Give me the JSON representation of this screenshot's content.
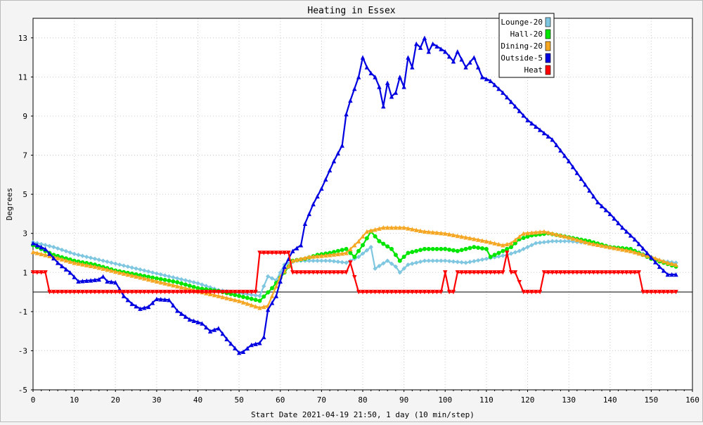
{
  "chart_data": {
    "type": "line",
    "title": "Heating in Essex",
    "xlabel": "Start Date 2021-04-19 21:50, 1 day (10 min/step)",
    "ylabel": "Degrees",
    "xlim": [
      0,
      160
    ],
    "ylim": [
      -5,
      14
    ],
    "x_ticks": [
      "0",
      "10",
      "20",
      "30",
      "40",
      "50",
      "60",
      "70",
      "80",
      "90",
      "100",
      "110",
      "120",
      "130",
      "140",
      "150",
      "160"
    ],
    "y_ticks": [
      "-5",
      "-3",
      "-1",
      "1",
      "3",
      "5",
      "7",
      "9",
      "11",
      "13"
    ],
    "grid": true,
    "zero_line": true,
    "legend_position": "top-right",
    "colors": {
      "background": "#ffffff",
      "page": "#f4f4f4",
      "grid": "#cccccc",
      "axis": "#000000"
    },
    "series": [
      {
        "name": "Lounge-20",
        "color": "#7fc7e0",
        "marker": "diamond",
        "points": [
          [
            0,
            2.55
          ],
          [
            5,
            2.3
          ],
          [
            10,
            1.95
          ],
          [
            15,
            1.7
          ],
          [
            20,
            1.45
          ],
          [
            25,
            1.2
          ],
          [
            30,
            0.95
          ],
          [
            35,
            0.7
          ],
          [
            40,
            0.45
          ],
          [
            45,
            0.1
          ],
          [
            50,
            -0.05
          ],
          [
            55,
            -0.2
          ],
          [
            57,
            0.8
          ],
          [
            59,
            0.6
          ],
          [
            61,
            1.4
          ],
          [
            64,
            1.6
          ],
          [
            68,
            1.6
          ],
          [
            72,
            1.6
          ],
          [
            76,
            1.5
          ],
          [
            79,
            1.8
          ],
          [
            82,
            2.3
          ],
          [
            83,
            1.2
          ],
          [
            86,
            1.6
          ],
          [
            88,
            1.3
          ],
          [
            89,
            1.0
          ],
          [
            91,
            1.4
          ],
          [
            95,
            1.6
          ],
          [
            100,
            1.6
          ],
          [
            105,
            1.5
          ],
          [
            110,
            1.7
          ],
          [
            115,
            1.9
          ],
          [
            118,
            2.1
          ],
          [
            122,
            2.5
          ],
          [
            126,
            2.6
          ],
          [
            130,
            2.6
          ],
          [
            135,
            2.5
          ],
          [
            140,
            2.3
          ],
          [
            145,
            2.2
          ],
          [
            150,
            1.8
          ],
          [
            152,
            1.6
          ],
          [
            156,
            1.5
          ]
        ]
      },
      {
        "name": "Hall-20",
        "color": "#00e600",
        "marker": "circle",
        "points": [
          [
            0,
            2.4
          ],
          [
            5,
            1.9
          ],
          [
            10,
            1.6
          ],
          [
            15,
            1.4
          ],
          [
            20,
            1.1
          ],
          [
            25,
            0.9
          ],
          [
            30,
            0.7
          ],
          [
            35,
            0.5
          ],
          [
            40,
            0.2
          ],
          [
            45,
            0.05
          ],
          [
            50,
            -0.2
          ],
          [
            55,
            -0.45
          ],
          [
            58,
            0.2
          ],
          [
            61,
            1.0
          ],
          [
            63,
            1.6
          ],
          [
            66,
            1.7
          ],
          [
            69,
            1.9
          ],
          [
            72,
            2.0
          ],
          [
            76,
            2.2
          ],
          [
            78,
            1.8
          ],
          [
            80,
            2.4
          ],
          [
            82,
            3.1
          ],
          [
            84,
            2.6
          ],
          [
            87,
            2.2
          ],
          [
            89,
            1.6
          ],
          [
            91,
            2.0
          ],
          [
            95,
            2.2
          ],
          [
            100,
            2.2
          ],
          [
            103,
            2.1
          ],
          [
            107,
            2.3
          ],
          [
            110,
            2.2
          ],
          [
            111,
            1.8
          ],
          [
            114,
            2.1
          ],
          [
            116,
            2.3
          ],
          [
            118,
            2.7
          ],
          [
            121,
            2.9
          ],
          [
            125,
            3.0
          ],
          [
            130,
            2.8
          ],
          [
            135,
            2.6
          ],
          [
            140,
            2.3
          ],
          [
            145,
            2.2
          ],
          [
            150,
            1.7
          ],
          [
            153,
            1.5
          ],
          [
            156,
            1.3
          ]
        ]
      },
      {
        "name": "Dining-20",
        "color": "#f5a623",
        "marker": "triangle",
        "points": [
          [
            0,
            2.05
          ],
          [
            5,
            1.8
          ],
          [
            10,
            1.5
          ],
          [
            15,
            1.3
          ],
          [
            20,
            1.05
          ],
          [
            25,
            0.8
          ],
          [
            30,
            0.55
          ],
          [
            35,
            0.3
          ],
          [
            40,
            0.05
          ],
          [
            45,
            -0.2
          ],
          [
            50,
            -0.45
          ],
          [
            55,
            -0.8
          ],
          [
            57,
            -0.7
          ],
          [
            60,
            0.8
          ],
          [
            63,
            1.6
          ],
          [
            67,
            1.8
          ],
          [
            72,
            1.9
          ],
          [
            76,
            2.0
          ],
          [
            79,
            2.6
          ],
          [
            81,
            3.1
          ],
          [
            85,
            3.3
          ],
          [
            90,
            3.3
          ],
          [
            95,
            3.1
          ],
          [
            100,
            3.0
          ],
          [
            105,
            2.8
          ],
          [
            110,
            2.6
          ],
          [
            114,
            2.4
          ],
          [
            116,
            2.5
          ],
          [
            119,
            3.0
          ],
          [
            124,
            3.1
          ],
          [
            130,
            2.8
          ],
          [
            135,
            2.5
          ],
          [
            140,
            2.3
          ],
          [
            145,
            2.1
          ],
          [
            150,
            1.8
          ],
          [
            154,
            1.5
          ],
          [
            156,
            1.4
          ]
        ]
      },
      {
        "name": "Outside-5",
        "color": "#0000e0",
        "marker": "triangle",
        "points": [
          [
            0,
            2.5
          ],
          [
            3,
            2.2
          ],
          [
            6,
            1.5
          ],
          [
            9,
            1.0
          ],
          [
            11,
            0.55
          ],
          [
            14,
            0.6
          ],
          [
            16,
            0.65
          ],
          [
            17,
            0.8
          ],
          [
            18,
            0.55
          ],
          [
            20,
            0.5
          ],
          [
            22,
            -0.2
          ],
          [
            24,
            -0.6
          ],
          [
            26,
            -0.85
          ],
          [
            28,
            -0.75
          ],
          [
            30,
            -0.35
          ],
          [
            33,
            -0.4
          ],
          [
            35,
            -0.95
          ],
          [
            38,
            -1.4
          ],
          [
            41,
            -1.6
          ],
          [
            43,
            -2.0
          ],
          [
            45,
            -1.85
          ],
          [
            47,
            -2.4
          ],
          [
            50,
            -3.1
          ],
          [
            51,
            -3.05
          ],
          [
            53,
            -2.7
          ],
          [
            55,
            -2.6
          ],
          [
            56,
            -2.3
          ],
          [
            57,
            -0.9
          ],
          [
            59,
            -0.2
          ],
          [
            61,
            1.3
          ],
          [
            63,
            2.1
          ],
          [
            65,
            2.4
          ],
          [
            66,
            3.5
          ],
          [
            68,
            4.5
          ],
          [
            70,
            5.3
          ],
          [
            73,
            6.7
          ],
          [
            75,
            7.5
          ],
          [
            76,
            9.1
          ],
          [
            77,
            9.8
          ],
          [
            79,
            11.0
          ],
          [
            80,
            12.0
          ],
          [
            81,
            11.5
          ],
          [
            82,
            11.2
          ],
          [
            83,
            11.0
          ],
          [
            84,
            10.5
          ],
          [
            85,
            9.5
          ],
          [
            86,
            10.7
          ],
          [
            87,
            10.0
          ],
          [
            88,
            10.2
          ],
          [
            89,
            11.0
          ],
          [
            90,
            10.5
          ],
          [
            91,
            12.0
          ],
          [
            92,
            11.5
          ],
          [
            93,
            12.7
          ],
          [
            94,
            12.5
          ],
          [
            95,
            13.0
          ],
          [
            96,
            12.3
          ],
          [
            97,
            12.7
          ],
          [
            100,
            12.3
          ],
          [
            102,
            11.8
          ],
          [
            103,
            12.3
          ],
          [
            105,
            11.5
          ],
          [
            107,
            12.0
          ],
          [
            109,
            11.0
          ],
          [
            111,
            10.8
          ],
          [
            114,
            10.2
          ],
          [
            117,
            9.5
          ],
          [
            120,
            8.8
          ],
          [
            123,
            8.3
          ],
          [
            126,
            7.8
          ],
          [
            130,
            6.7
          ],
          [
            134,
            5.5
          ],
          [
            137,
            4.6
          ],
          [
            140,
            4.0
          ],
          [
            143,
            3.3
          ],
          [
            146,
            2.7
          ],
          [
            149,
            2.0
          ],
          [
            152,
            1.3
          ],
          [
            154,
            0.9
          ],
          [
            156,
            0.9
          ]
        ]
      },
      {
        "name": "Heat",
        "color": "#ff0000",
        "marker": "triangle-down",
        "points": [
          [
            0,
            1.0
          ],
          [
            3,
            1.0
          ],
          [
            4,
            0.0
          ],
          [
            54,
            0.0
          ],
          [
            55,
            2.0
          ],
          [
            62,
            2.0
          ],
          [
            63,
            1.0
          ],
          [
            76,
            1.0
          ],
          [
            77,
            1.5
          ],
          [
            79,
            0.0
          ],
          [
            99,
            0.0
          ],
          [
            100,
            1.0
          ],
          [
            101,
            0.0
          ],
          [
            102,
            0.0
          ],
          [
            103,
            1.0
          ],
          [
            114,
            1.0
          ],
          [
            115,
            2.0
          ],
          [
            116,
            1.0
          ],
          [
            117,
            1.0
          ],
          [
            119,
            0.0
          ],
          [
            123,
            0.0
          ],
          [
            124,
            1.0
          ],
          [
            147,
            1.0
          ],
          [
            148,
            0.0
          ],
          [
            156,
            0.0
          ]
        ]
      }
    ]
  }
}
